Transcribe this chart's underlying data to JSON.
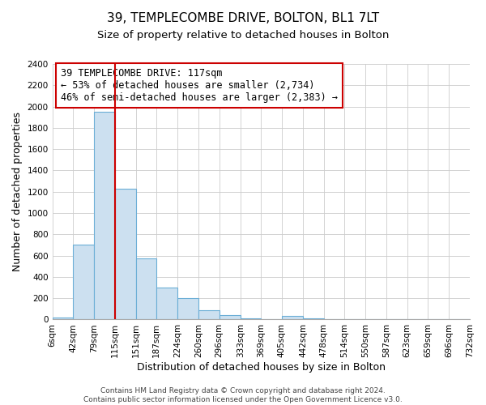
{
  "title": "39, TEMPLECOMBE DRIVE, BOLTON, BL1 7LT",
  "subtitle": "Size of property relative to detached houses in Bolton",
  "xlabel": "Distribution of detached houses by size in Bolton",
  "ylabel": "Number of detached properties",
  "bin_edges": [
    6,
    42,
    79,
    115,
    151,
    187,
    224,
    260,
    296,
    333,
    369,
    405,
    442,
    478,
    514,
    550,
    587,
    623,
    659,
    696,
    732
  ],
  "bin_labels": [
    "6sqm",
    "42sqm",
    "79sqm",
    "115sqm",
    "151sqm",
    "187sqm",
    "224sqm",
    "260sqm",
    "296sqm",
    "333sqm",
    "369sqm",
    "405sqm",
    "442sqm",
    "478sqm",
    "514sqm",
    "550sqm",
    "587sqm",
    "623sqm",
    "659sqm",
    "696sqm",
    "732sqm"
  ],
  "counts": [
    15,
    700,
    1950,
    1230,
    575,
    300,
    200,
    85,
    45,
    10,
    5,
    35,
    10,
    5,
    2,
    2,
    1,
    1,
    1,
    1
  ],
  "bar_color": "#cce0f0",
  "bar_edge_color": "#6baed6",
  "property_line_x": 115,
  "property_line_color": "#cc0000",
  "annotation_line1": "39 TEMPLECOMBE DRIVE: 117sqm",
  "annotation_line2": "← 53% of detached houses are smaller (2,734)",
  "annotation_line3": "46% of semi-detached houses are larger (2,383) →",
  "annotation_box_color": "#ffffff",
  "annotation_box_edge": "#cc0000",
  "ylim": [
    0,
    2400
  ],
  "yticks": [
    0,
    200,
    400,
    600,
    800,
    1000,
    1200,
    1400,
    1600,
    1800,
    2000,
    2200,
    2400
  ],
  "footer_line1": "Contains HM Land Registry data © Crown copyright and database right 2024.",
  "footer_line2": "Contains public sector information licensed under the Open Government Licence v3.0.",
  "background_color": "#ffffff",
  "grid_color": "#cccccc",
  "title_fontsize": 11,
  "subtitle_fontsize": 9.5,
  "axis_label_fontsize": 9,
  "tick_fontsize": 7.5,
  "annotation_fontsize": 8.5,
  "footer_fontsize": 6.5
}
